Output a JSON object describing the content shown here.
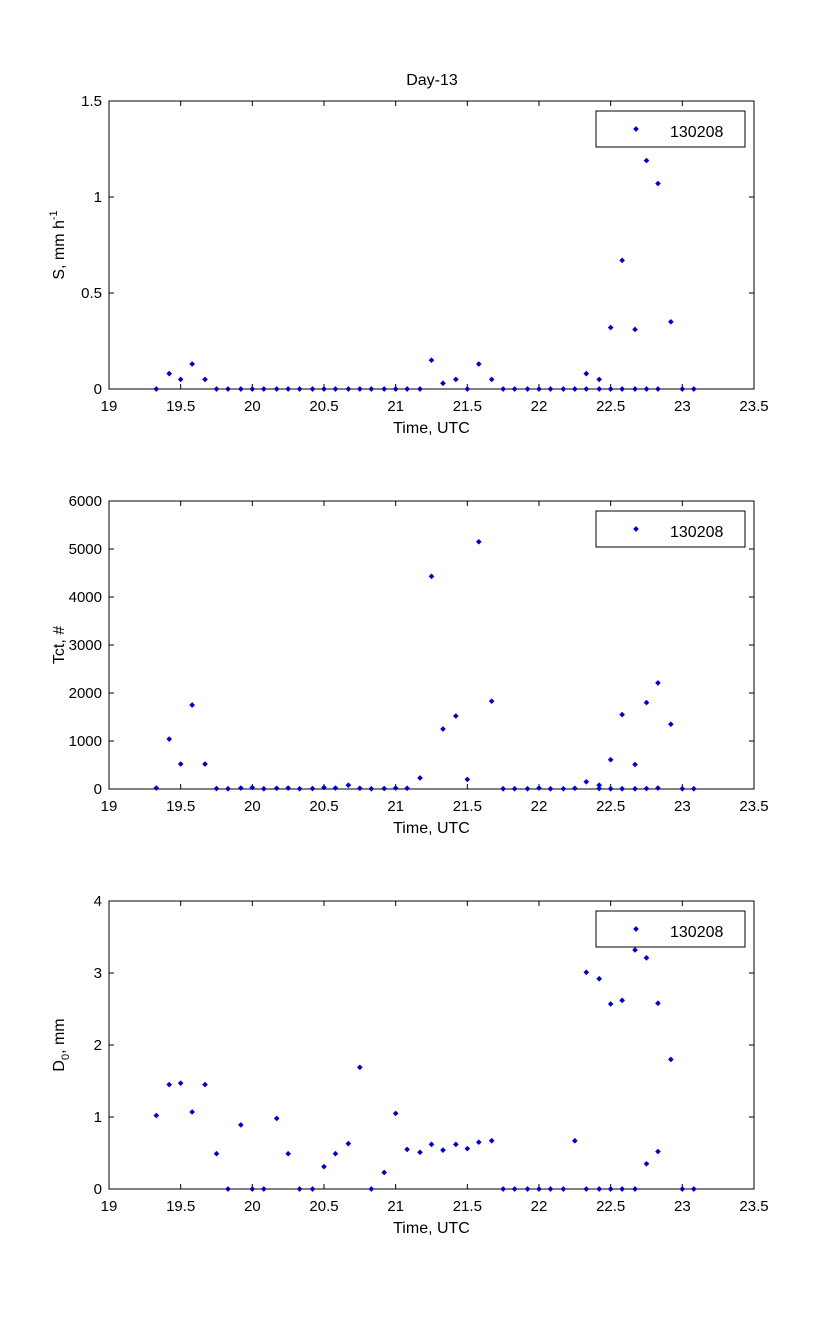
{
  "figure_title": "Day-13",
  "chart_data": [
    {
      "type": "scatter",
      "title": "Day-13",
      "xlabel": "Time, UTC",
      "ylabel": {
        "base": "S, mm h",
        "sup": "-1"
      },
      "xlim": [
        19,
        23.5
      ],
      "ylim": [
        0,
        1.5
      ],
      "xticks": [
        "19",
        "19.5",
        "20",
        "20.5",
        "21",
        "21.5",
        "22",
        "22.5",
        "23",
        "23.5"
      ],
      "yticks": [
        "0",
        "0.5",
        "1",
        "1.5"
      ],
      "grid": false,
      "legend_position": "top-right",
      "series": [
        {
          "name": "130208",
          "color": "#0000cc",
          "points": [
            [
              19.33,
              0.0
            ],
            [
              19.42,
              0.08
            ],
            [
              19.5,
              0.05
            ],
            [
              19.58,
              0.13
            ],
            [
              19.67,
              0.05
            ],
            [
              19.75,
              0.0
            ],
            [
              19.83,
              0.0
            ],
            [
              19.92,
              0.0
            ],
            [
              20.0,
              0.0
            ],
            [
              20.08,
              0.0
            ],
            [
              20.17,
              0.0
            ],
            [
              20.25,
              0.0
            ],
            [
              20.33,
              0.0
            ],
            [
              20.42,
              0.0
            ],
            [
              20.5,
              0.0
            ],
            [
              20.58,
              0.0
            ],
            [
              20.67,
              0.0
            ],
            [
              20.75,
              0.0
            ],
            [
              20.83,
              0.0
            ],
            [
              20.92,
              0.0
            ],
            [
              21.0,
              0.0
            ],
            [
              21.08,
              0.0
            ],
            [
              21.17,
              0.0
            ],
            [
              21.25,
              0.15
            ],
            [
              21.33,
              0.03
            ],
            [
              21.42,
              0.05
            ],
            [
              21.5,
              0.0
            ],
            [
              21.58,
              0.13
            ],
            [
              21.67,
              0.05
            ],
            [
              21.75,
              0.0
            ],
            [
              21.83,
              0.0
            ],
            [
              21.92,
              0.0
            ],
            [
              22.0,
              0.0
            ],
            [
              22.08,
              0.0
            ],
            [
              22.17,
              0.0
            ],
            [
              22.25,
              0.0
            ],
            [
              22.33,
              0.08
            ],
            [
              22.42,
              0.05
            ],
            [
              22.5,
              0.32
            ],
            [
              22.58,
              0.67
            ],
            [
              22.67,
              0.31
            ],
            [
              22.75,
              1.19
            ],
            [
              22.83,
              1.07
            ],
            [
              22.92,
              0.35
            ],
            [
              23.0,
              0.0
            ],
            [
              23.08,
              0.0
            ],
            [
              22.33,
              0.0
            ],
            [
              22.42,
              0.0
            ],
            [
              22.5,
              0.0
            ],
            [
              22.58,
              0.0
            ],
            [
              22.67,
              0.0
            ],
            [
              22.75,
              0.0
            ],
            [
              22.83,
              0.0
            ]
          ]
        }
      ]
    },
    {
      "type": "scatter",
      "title": "",
      "xlabel": "Time, UTC",
      "ylabel": {
        "base": "Tct, #",
        "sup": ""
      },
      "xlim": [
        19,
        23.5
      ],
      "ylim": [
        0,
        6000
      ],
      "xticks": [
        "19",
        "19.5",
        "20",
        "20.5",
        "21",
        "21.5",
        "22",
        "22.5",
        "23",
        "23.5"
      ],
      "yticks": [
        "0",
        "1000",
        "2000",
        "3000",
        "4000",
        "5000",
        "6000"
      ],
      "grid": false,
      "legend_position": "top-right",
      "series": [
        {
          "name": "130208",
          "color": "#0000cc",
          "points": [
            [
              19.33,
              20
            ],
            [
              19.42,
              1040
            ],
            [
              19.5,
              520
            ],
            [
              19.58,
              1750
            ],
            [
              19.67,
              520
            ],
            [
              19.75,
              10
            ],
            [
              19.83,
              5
            ],
            [
              19.92,
              20
            ],
            [
              20.0,
              30
            ],
            [
              20.08,
              5
            ],
            [
              20.17,
              15
            ],
            [
              20.25,
              20
            ],
            [
              20.33,
              5
            ],
            [
              20.42,
              10
            ],
            [
              20.5,
              30
            ],
            [
              20.58,
              20
            ],
            [
              20.67,
              80
            ],
            [
              20.75,
              15
            ],
            [
              20.83,
              5
            ],
            [
              20.92,
              10
            ],
            [
              21.0,
              20
            ],
            [
              21.08,
              15
            ],
            [
              21.17,
              230
            ],
            [
              21.25,
              4430
            ],
            [
              21.33,
              1250
            ],
            [
              21.42,
              1520
            ],
            [
              21.5,
              200
            ],
            [
              21.58,
              5150
            ],
            [
              21.67,
              1830
            ],
            [
              21.75,
              5
            ],
            [
              21.83,
              5
            ],
            [
              21.92,
              5
            ],
            [
              22.0,
              20
            ],
            [
              22.08,
              5
            ],
            [
              22.17,
              5
            ],
            [
              22.25,
              15
            ],
            [
              22.33,
              150
            ],
            [
              22.42,
              80
            ],
            [
              22.5,
              610
            ],
            [
              22.58,
              1550
            ],
            [
              22.67,
              510
            ],
            [
              22.75,
              1800
            ],
            [
              22.83,
              2210
            ],
            [
              22.92,
              1350
            ],
            [
              23.0,
              5
            ],
            [
              23.08,
              5
            ],
            [
              22.42,
              10
            ],
            [
              22.5,
              5
            ],
            [
              22.58,
              5
            ],
            [
              22.67,
              5
            ],
            [
              22.75,
              10
            ],
            [
              22.83,
              20
            ]
          ]
        }
      ]
    },
    {
      "type": "scatter",
      "title": "",
      "xlabel": "Time, UTC",
      "ylabel": {
        "base": "D",
        "sub": "0",
        "tail": ", mm"
      },
      "xlim": [
        19,
        23.5
      ],
      "ylim": [
        0,
        4
      ],
      "xticks": [
        "19",
        "19.5",
        "20",
        "20.5",
        "21",
        "21.5",
        "22",
        "22.5",
        "23",
        "23.5"
      ],
      "yticks": [
        "0",
        "1",
        "2",
        "3",
        "4"
      ],
      "grid": false,
      "legend_position": "top-right",
      "series": [
        {
          "name": "130208",
          "color": "#0000cc",
          "points": [
            [
              19.33,
              1.02
            ],
            [
              19.42,
              1.45
            ],
            [
              19.5,
              1.47
            ],
            [
              19.58,
              1.07
            ],
            [
              19.67,
              1.45
            ],
            [
              19.75,
              0.49
            ],
            [
              19.83,
              0.0
            ],
            [
              19.92,
              0.89
            ],
            [
              20.0,
              0.0
            ],
            [
              20.08,
              0.0
            ],
            [
              20.17,
              0.98
            ],
            [
              20.25,
              0.49
            ],
            [
              20.33,
              0.0
            ],
            [
              20.42,
              0.0
            ],
            [
              20.5,
              0.31
            ],
            [
              20.58,
              0.49
            ],
            [
              20.67,
              0.63
            ],
            [
              20.75,
              1.69
            ],
            [
              20.83,
              0.0
            ],
            [
              20.92,
              0.23
            ],
            [
              21.0,
              1.05
            ],
            [
              21.08,
              0.55
            ],
            [
              21.17,
              0.51
            ],
            [
              21.25,
              0.62
            ],
            [
              21.33,
              0.54
            ],
            [
              21.42,
              0.62
            ],
            [
              21.5,
              0.56
            ],
            [
              21.58,
              0.65
            ],
            [
              21.67,
              0.67
            ],
            [
              21.75,
              0.0
            ],
            [
              21.83,
              0.0
            ],
            [
              21.92,
              0.0
            ],
            [
              22.0,
              0.0
            ],
            [
              22.08,
              0.0
            ],
            [
              22.17,
              0.0
            ],
            [
              22.25,
              0.67
            ],
            [
              22.33,
              3.01
            ],
            [
              22.42,
              2.92
            ],
            [
              22.5,
              2.57
            ],
            [
              22.58,
              2.62
            ],
            [
              22.67,
              3.32
            ],
            [
              22.75,
              3.21
            ],
            [
              22.83,
              2.58
            ],
            [
              22.92,
              1.8
            ],
            [
              23.0,
              0.0
            ],
            [
              23.08,
              0.0
            ],
            [
              22.33,
              0.0
            ],
            [
              22.42,
              0.0
            ],
            [
              22.5,
              0.0
            ],
            [
              22.58,
              0.0
            ],
            [
              22.67,
              0.0
            ],
            [
              22.75,
              0.35
            ],
            [
              22.83,
              0.52
            ]
          ]
        }
      ]
    }
  ]
}
